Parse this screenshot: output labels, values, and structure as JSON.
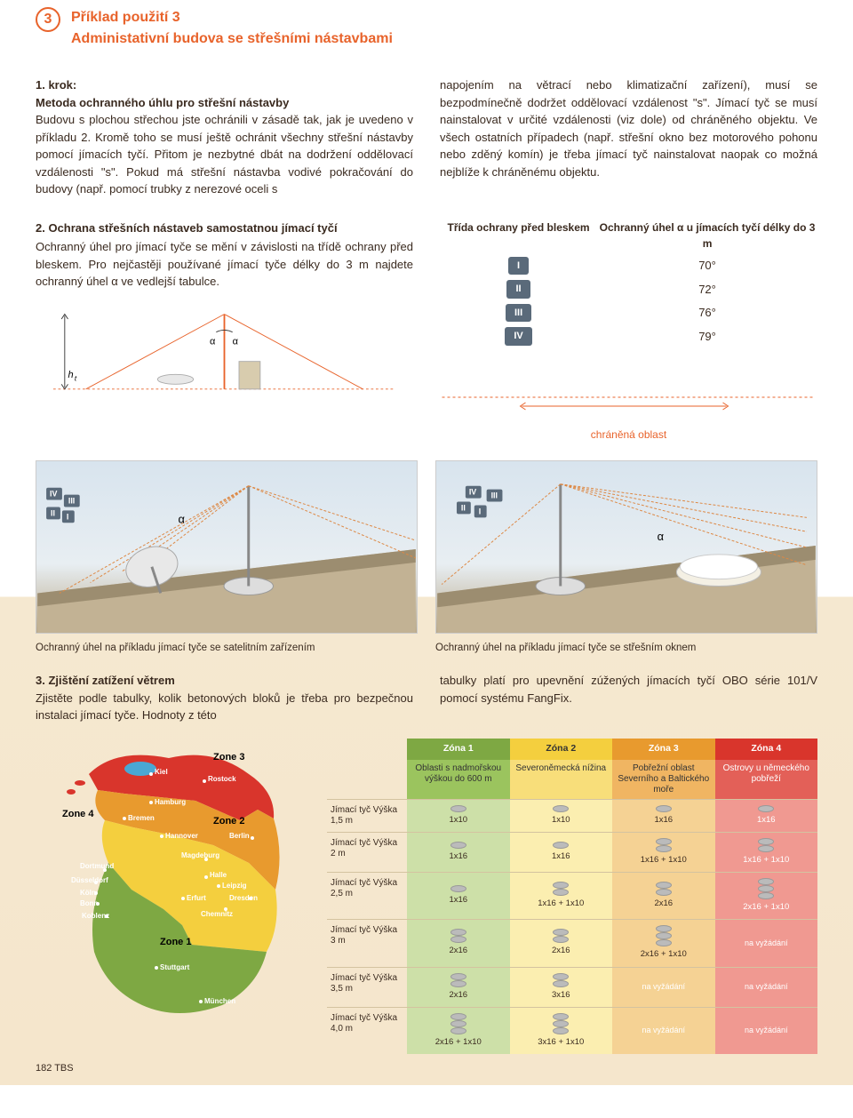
{
  "header": {
    "badge_number": "3",
    "title_line1": "Příklad použití 3",
    "title_line2": "Administativní budova se střešními nástavbami"
  },
  "step1": {
    "heading_prefix": "1. krok:",
    "heading": "Metoda ochranného úhlu pro střešní nástavby",
    "left_text": "Budovu s plochou střechou jste ochránili v zásadě tak, jak je uvedeno v příkladu 2. Kromě toho se musí ještě ochránit všechny střešní nástavby pomocí jímacích tyčí. Přitom je nezbytné dbát na dodržení oddělovací vzdálenosti \"s\". Pokud má střešní nástavba vodivé pokračování do budovy (např. pomocí trubky z nerezové oceli s",
    "right_text": "napojením na větrací nebo klimatizační zařízení), musí se bezpodmínečně dodržet oddělovací vzdálenost \"s\". Jímací tyč se musí nainstalovat v určité vzdálenosti (viz dole) od chráněného objektu. Ve všech ostatních případech (např. střešní okno bez motorového pohonu nebo zděný komín) je třeba jímací tyč nainstalovat naopak co možná nejblíže k chráněnému objektu."
  },
  "step2": {
    "heading": "2. Ochrana střešních nástaveb samostatnou jímací tyčí",
    "text": "Ochranný úhel pro jímací tyče se mění v závislosti na třídě ochrany před bleskem. Pro nejčastěji používané jímací tyče délky do 3 m najdete ochranný úhel α ve vedlejší tabulce.",
    "ht_label": "h",
    "ht_sub": "t",
    "alpha": "α",
    "table": {
      "col1_header": "Třída ochrany před bleskem",
      "col2_header": "Ochranný úhel α u jímacích tyčí délky do 3 m",
      "rows": [
        {
          "cls": "I",
          "angle": "70°"
        },
        {
          "cls": "II",
          "angle": "72°"
        },
        {
          "cls": "III",
          "angle": "76°"
        },
        {
          "cls": "IV",
          "angle": "79°"
        }
      ]
    },
    "protected_area": "chráněná oblast"
  },
  "roof": {
    "caption_left": "Ochranný úhel na příkladu jímací tyče se satelitním zařízením",
    "caption_right": "Ochranný úhel na příkladu jímací tyče se střešním oknem",
    "badges": [
      "IV",
      "III",
      "II",
      "I"
    ],
    "alpha": "α"
  },
  "step3": {
    "heading": "3. Zjištění zatížení větrem",
    "left_text": "Zjistěte podle tabulky, kolik betonových bloků je třeba pro bezpečnou instalaci jímací tyče. Hodnoty z této",
    "right_text": "tabulky platí pro upevnění zúžených jímacích tyčí OBO série 101/V pomocí systému FangFix."
  },
  "map": {
    "zone1_label": "Zone 1",
    "zone2_label": "Zone 2",
    "zone3_label": "Zone 3",
    "zone4_label": "Zone 4",
    "cities": [
      "Kiel",
      "Rostock",
      "Hamburg",
      "Bremen",
      "Hannover",
      "Berlin",
      "Magdeburg",
      "Halle",
      "Leipzig",
      "Dresden",
      "Erfurt",
      "Chemnitz",
      "Dortmund",
      "Düsseldorf",
      "Köln",
      "Bonn",
      "Koblenz",
      "Stuttgart",
      "München"
    ],
    "colors": {
      "z1": "#7ea843",
      "z2": "#f4cf3e",
      "z3": "#e89a2e",
      "z4": "#d9352c",
      "water": "#4aa7d4"
    }
  },
  "wind_table": {
    "zone_headers": [
      "Zóna 1",
      "Zóna 2",
      "Zóna 3",
      "Zóna 4"
    ],
    "zone_desc": [
      "Oblasti s nadmořskou výškou do 600 m",
      "Severoněmecká nížina",
      "Pobřežní oblast Severního a Baltického moře",
      "Ostrovy u německého pobřeží"
    ],
    "row_labels": [
      "Jímací tyč Výška 1,5 m",
      "Jímací tyč Výška 2 m",
      "Jímací tyč Výška 2,5 m",
      "Jímací tyč Výška 3 m",
      "Jímací tyč Výška 3,5 m",
      "Jímací tyč Výška 4,0 m"
    ],
    "cells": [
      [
        "1x10",
        "1x10",
        "1x16",
        "1x16"
      ],
      [
        "1x16",
        "1x16",
        "1x16 + 1x10",
        "1x16 + 1x10"
      ],
      [
        "1x16",
        "1x16 + 1x10",
        "2x16",
        "2x16 + 1x10"
      ],
      [
        "2x16",
        "2x16",
        "2x16 + 1x10",
        "na vyžádání"
      ],
      [
        "2x16",
        "3x16",
        "na vyžádání",
        "na vyžádání"
      ],
      [
        "2x16 + 1x10",
        "3x16 + 1x10",
        "na vyžádání",
        "na vyžádání"
      ]
    ]
  },
  "footer": {
    "page": "182 TBS"
  }
}
